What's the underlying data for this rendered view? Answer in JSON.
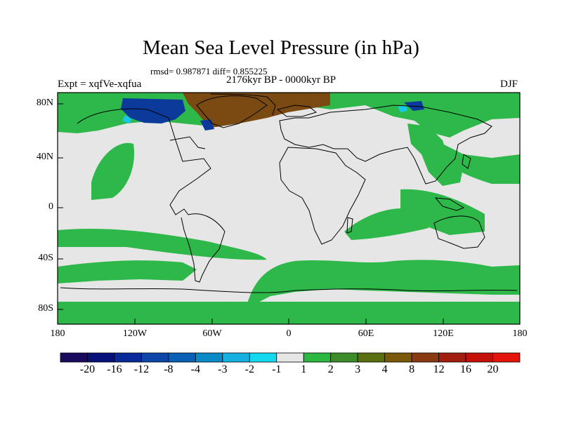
{
  "title": "Mean Sea Level Pressure (in hPa)",
  "stats": "rmsd= 0.987871 diff= 0.855225",
  "period": "2176kyr BP - 0000kyr BP",
  "experiment": "Expt = xqfVe-xqfua",
  "season": "DJF",
  "lat_labels": [
    "80N",
    "40N",
    "0",
    "40S",
    "80S"
  ],
  "lon_labels": [
    "180",
    "120W",
    "60W",
    "0",
    "60E",
    "120E",
    "180"
  ],
  "colorbar": {
    "labels": [
      "-20",
      "-16",
      "-12",
      "-8",
      "-4",
      "-3",
      "-2",
      "-1",
      "1",
      "2",
      "3",
      "4",
      "8",
      "12",
      "16",
      "20"
    ],
    "colors": [
      "#1a0a5e",
      "#08107a",
      "#0a2a9a",
      "#0b46a8",
      "#0a60b4",
      "#0a8ac6",
      "#16b0e0",
      "#14d8ee",
      "#e6e6e6",
      "#2ab840",
      "#3c8c2a",
      "#5a7010",
      "#7a5a0a",
      "#8a3a10",
      "#a41e10",
      "#c41008",
      "#e4140a"
    ]
  },
  "map_colors": {
    "ocean": "#e6e6e6",
    "green": "#2eb84a",
    "brown": "#7a4a12",
    "blue": "#0b3a9a",
    "cyan": "#18c8e8"
  }
}
